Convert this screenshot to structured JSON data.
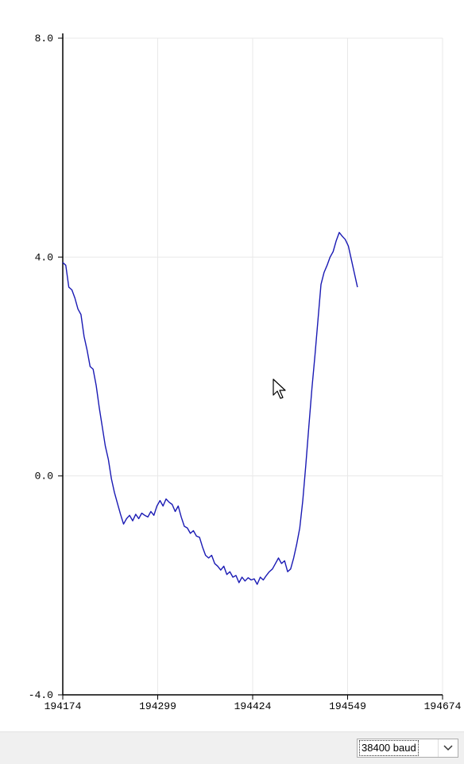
{
  "chart_data": {
    "type": "line",
    "title": "",
    "xlabel": "",
    "ylabel": "",
    "xlim": [
      194174,
      194674
    ],
    "ylim": [
      -4.0,
      8.0
    ],
    "x_ticks": [
      194174,
      194299,
      194424,
      194549,
      194674
    ],
    "x_tick_labels": [
      "194174",
      "194299",
      "194424",
      "194549",
      "194674"
    ],
    "y_ticks": [
      -4.0,
      0.0,
      4.0,
      8.0
    ],
    "y_tick_labels": [
      "-4.0",
      "0.0",
      "4.0",
      "8.0"
    ],
    "grid": true,
    "series": [
      {
        "color": "#1a1ab4",
        "points": [
          [
            194174,
            3.9
          ],
          [
            194178,
            3.85
          ],
          [
            194182,
            3.45
          ],
          [
            194186,
            3.4
          ],
          [
            194190,
            3.25
          ],
          [
            194194,
            3.05
          ],
          [
            194198,
            2.95
          ],
          [
            194202,
            2.55
          ],
          [
            194206,
            2.3
          ],
          [
            194210,
            2.0
          ],
          [
            194214,
            1.95
          ],
          [
            194218,
            1.65
          ],
          [
            194222,
            1.25
          ],
          [
            194226,
            0.9
          ],
          [
            194230,
            0.55
          ],
          [
            194234,
            0.3
          ],
          [
            194238,
            -0.05
          ],
          [
            194242,
            -0.3
          ],
          [
            194246,
            -0.5
          ],
          [
            194250,
            -0.7
          ],
          [
            194254,
            -0.88
          ],
          [
            194258,
            -0.78
          ],
          [
            194262,
            -0.72
          ],
          [
            194266,
            -0.82
          ],
          [
            194270,
            -0.7
          ],
          [
            194274,
            -0.78
          ],
          [
            194278,
            -0.68
          ],
          [
            194282,
            -0.72
          ],
          [
            194286,
            -0.75
          ],
          [
            194290,
            -0.65
          ],
          [
            194294,
            -0.72
          ],
          [
            194298,
            -0.55
          ],
          [
            194302,
            -0.45
          ],
          [
            194306,
            -0.55
          ],
          [
            194310,
            -0.42
          ],
          [
            194314,
            -0.48
          ],
          [
            194318,
            -0.52
          ],
          [
            194322,
            -0.65
          ],
          [
            194326,
            -0.55
          ],
          [
            194330,
            -0.75
          ],
          [
            194334,
            -0.92
          ],
          [
            194338,
            -0.95
          ],
          [
            194342,
            -1.05
          ],
          [
            194346,
            -1.0
          ],
          [
            194350,
            -1.1
          ],
          [
            194354,
            -1.12
          ],
          [
            194358,
            -1.3
          ],
          [
            194362,
            -1.45
          ],
          [
            194366,
            -1.5
          ],
          [
            194370,
            -1.45
          ],
          [
            194374,
            -1.6
          ],
          [
            194378,
            -1.65
          ],
          [
            194382,
            -1.72
          ],
          [
            194386,
            -1.65
          ],
          [
            194390,
            -1.8
          ],
          [
            194394,
            -1.75
          ],
          [
            194398,
            -1.85
          ],
          [
            194402,
            -1.82
          ],
          [
            194406,
            -1.95
          ],
          [
            194410,
            -1.85
          ],
          [
            194414,
            -1.92
          ],
          [
            194418,
            -1.86
          ],
          [
            194422,
            -1.9
          ],
          [
            194426,
            -1.88
          ],
          [
            194430,
            -1.98
          ],
          [
            194434,
            -1.85
          ],
          [
            194438,
            -1.9
          ],
          [
            194442,
            -1.82
          ],
          [
            194446,
            -1.75
          ],
          [
            194450,
            -1.7
          ],
          [
            194454,
            -1.6
          ],
          [
            194458,
            -1.5
          ],
          [
            194462,
            -1.6
          ],
          [
            194466,
            -1.55
          ],
          [
            194470,
            -1.75
          ],
          [
            194474,
            -1.7
          ],
          [
            194478,
            -1.5
          ],
          [
            194482,
            -1.25
          ],
          [
            194486,
            -0.95
          ],
          [
            194490,
            -0.45
          ],
          [
            194494,
            0.2
          ],
          [
            194498,
            0.9
          ],
          [
            194502,
            1.6
          ],
          [
            194506,
            2.2
          ],
          [
            194510,
            2.85
          ],
          [
            194514,
            3.5
          ],
          [
            194518,
            3.72
          ],
          [
            194522,
            3.85
          ],
          [
            194526,
            4.0
          ],
          [
            194530,
            4.1
          ],
          [
            194534,
            4.3
          ],
          [
            194538,
            4.45
          ],
          [
            194542,
            4.38
          ],
          [
            194546,
            4.32
          ],
          [
            194550,
            4.2
          ],
          [
            194554,
            3.95
          ],
          [
            194558,
            3.7
          ],
          [
            194562,
            3.45
          ]
        ]
      }
    ]
  },
  "baud_select": {
    "value": "38400 baud"
  },
  "icons": {
    "cursor": "mouse-pointer-icon",
    "dropdown": "chevron-down-icon"
  }
}
